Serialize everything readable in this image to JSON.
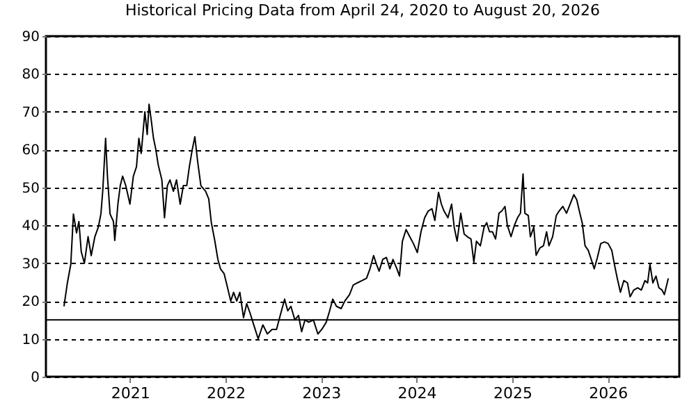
{
  "chart_data": {
    "type": "line",
    "title": "Historical Pricing Data from April 24, 2020 to August 20, 2026",
    "x": [
      "2020-04-24",
      "2020-05-07",
      "2020-05-20",
      "2020-05-30",
      "2020-06-11",
      "2020-06-20",
      "2020-06-29",
      "2020-07-11",
      "2020-07-25",
      "2020-08-06",
      "2020-08-20",
      "2020-09-02",
      "2020-09-12",
      "2020-09-19",
      "2020-09-30",
      "2020-10-07",
      "2020-10-17",
      "2020-10-30",
      "2020-11-04",
      "2020-11-16",
      "2020-11-25",
      "2020-12-04",
      "2020-12-16",
      "2021-01-01",
      "2021-01-14",
      "2021-01-26",
      "2021-02-04",
      "2021-02-13",
      "2021-02-27",
      "2021-03-08",
      "2021-03-15",
      "2021-03-23",
      "2021-04-01",
      "2021-04-10",
      "2021-04-19",
      "2021-05-03",
      "2021-05-13",
      "2021-05-24",
      "2021-06-03",
      "2021-06-16",
      "2021-06-28",
      "2021-07-12",
      "2021-07-24",
      "2021-08-06",
      "2021-08-16",
      "2021-08-27",
      "2021-09-06",
      "2021-09-17",
      "2021-09-29",
      "2021-10-17",
      "2021-10-29",
      "2021-11-08",
      "2021-11-21",
      "2021-12-03",
      "2021-12-13",
      "2021-12-27",
      "2022-01-09",
      "2022-01-21",
      "2022-02-01",
      "2022-02-13",
      "2022-02-25",
      "2022-03-11",
      "2022-03-23",
      "2022-04-05",
      "2022-04-19",
      "2022-05-06",
      "2022-05-24",
      "2022-06-10",
      "2022-06-28",
      "2022-07-15",
      "2022-07-30",
      "2022-08-15",
      "2022-08-27",
      "2022-09-08",
      "2022-09-23",
      "2022-10-07",
      "2022-10-19",
      "2022-11-01",
      "2022-11-15",
      "2022-12-03",
      "2022-12-20",
      "2023-01-04",
      "2023-01-21",
      "2023-02-03",
      "2023-02-15",
      "2023-03-01",
      "2023-03-19",
      "2023-04-02",
      "2023-04-20",
      "2023-05-04",
      "2023-05-20",
      "2023-06-07",
      "2023-06-24",
      "2023-07-07",
      "2023-07-21",
      "2023-08-01",
      "2023-08-11",
      "2023-08-25",
      "2023-09-08",
      "2023-09-21",
      "2023-10-03",
      "2023-10-18",
      "2023-10-28",
      "2023-11-08",
      "2023-11-22",
      "2023-12-06",
      "2023-12-20",
      "2024-01-04",
      "2024-01-18",
      "2024-02-01",
      "2024-02-15",
      "2024-02-29",
      "2024-03-11",
      "2024-03-25",
      "2024-04-05",
      "2024-04-15",
      "2024-04-30",
      "2024-05-14",
      "2024-05-24",
      "2024-06-04",
      "2024-06-18",
      "2024-07-01",
      "2024-07-13",
      "2024-07-27",
      "2024-08-07",
      "2024-08-17",
      "2024-09-01",
      "2024-09-15",
      "2024-09-25",
      "2024-10-06",
      "2024-10-17",
      "2024-10-29",
      "2024-11-11",
      "2024-11-22",
      "2024-12-04",
      "2024-12-13",
      "2024-12-27",
      "2025-01-09",
      "2025-01-21",
      "2025-02-01",
      "2025-02-11",
      "2025-02-18",
      "2025-03-03",
      "2025-03-11",
      "2025-03-24",
      "2025-04-02",
      "2025-04-16",
      "2025-04-30",
      "2025-05-12",
      "2025-05-21",
      "2025-06-04",
      "2025-06-18",
      "2025-06-29",
      "2025-07-13",
      "2025-07-27",
      "2025-08-10",
      "2025-08-24",
      "2025-09-04",
      "2025-09-14",
      "2025-09-25",
      "2025-10-06",
      "2025-10-18",
      "2025-10-30",
      "2025-11-10",
      "2025-11-22",
      "2025-12-05",
      "2025-12-19",
      "2026-01-02",
      "2026-01-16",
      "2026-01-26",
      "2026-02-06",
      "2026-02-18",
      "2026-03-03",
      "2026-03-17",
      "2026-03-27",
      "2026-04-10",
      "2026-04-25",
      "2026-05-09",
      "2026-05-23",
      "2026-06-02",
      "2026-06-11",
      "2026-06-22",
      "2026-07-04",
      "2026-07-15",
      "2026-07-27",
      "2026-08-05",
      "2026-08-20"
    ],
    "values": [
      18.6,
      24.8,
      29.7,
      43,
      38,
      41,
      33,
      30,
      37,
      32,
      37,
      39.5,
      43,
      49,
      63,
      53,
      43,
      41,
      36,
      45.6,
      50.5,
      53,
      50.5,
      45.6,
      53,
      55.5,
      63,
      59,
      70,
      64,
      72,
      68,
      63,
      60,
      56,
      52,
      42,
      50.5,
      52,
      49,
      52,
      45.6,
      50.5,
      50.5,
      55.5,
      60,
      63.4,
      56.7,
      50.5,
      49,
      47,
      40.7,
      36,
      31,
      28.5,
      27.2,
      23.5,
      20,
      22.3,
      20,
      22.3,
      15.6,
      19.3,
      16.8,
      13.7,
      10,
      13.7,
      11.3,
      12.5,
      12.5,
      16.4,
      20.5,
      17.4,
      18.6,
      15,
      16.2,
      11.9,
      15,
      14.4,
      15,
      11.3,
      12.5,
      14.4,
      17.4,
      20.5,
      18.6,
      18,
      20,
      21.7,
      24.2,
      24.8,
      25.4,
      26,
      28.5,
      32,
      29.7,
      27.9,
      31,
      31.5,
      28.5,
      31,
      28.5,
      26.6,
      35.8,
      38.9,
      37,
      35.2,
      32.8,
      38.3,
      42,
      43.8,
      44.4,
      41.3,
      48.7,
      45.6,
      43.8,
      42,
      45.6,
      39.5,
      35.8,
      43.2,
      37.7,
      37,
      36.4,
      30.3,
      35.8,
      34.6,
      39.5,
      40.7,
      38.3,
      38.3,
      36.4,
      43.2,
      43.8,
      45,
      40,
      37,
      40,
      42,
      43.2,
      53.6,
      43.2,
      42.6,
      37,
      39.5,
      32.1,
      34,
      34.6,
      38.3,
      34.6,
      37,
      42.6,
      43.8,
      45,
      43.2,
      45.6,
      48.1,
      46.8,
      43.8,
      40.7,
      34.6,
      33.4,
      30.9,
      28.5,
      31.5,
      35.2,
      35.6,
      35.2,
      33.4,
      29.7,
      26,
      22.3,
      25.4,
      24.8,
      21.1,
      22.9,
      23.5,
      22.9,
      25.4,
      24.8,
      29.7,
      24.8,
      26.6,
      23.5,
      22.9,
      21.7,
      26
    ],
    "color": "#000000",
    "xlim": [
      "2020-02-15",
      "2026-10-01"
    ],
    "xticks": [
      "2021",
      "2022",
      "2023",
      "2024",
      "2025",
      "2026"
    ],
    "ylim": [
      0,
      90
    ],
    "yticks": [
      0,
      10,
      20,
      30,
      40,
      50,
      60,
      70,
      80,
      90
    ],
    "grid": "y",
    "line_style": "solid",
    "marker": "none",
    "ref_lines": [
      {
        "axis": "y",
        "value": 15,
        "color": "#000000",
        "line_style": "solid"
      }
    ]
  }
}
